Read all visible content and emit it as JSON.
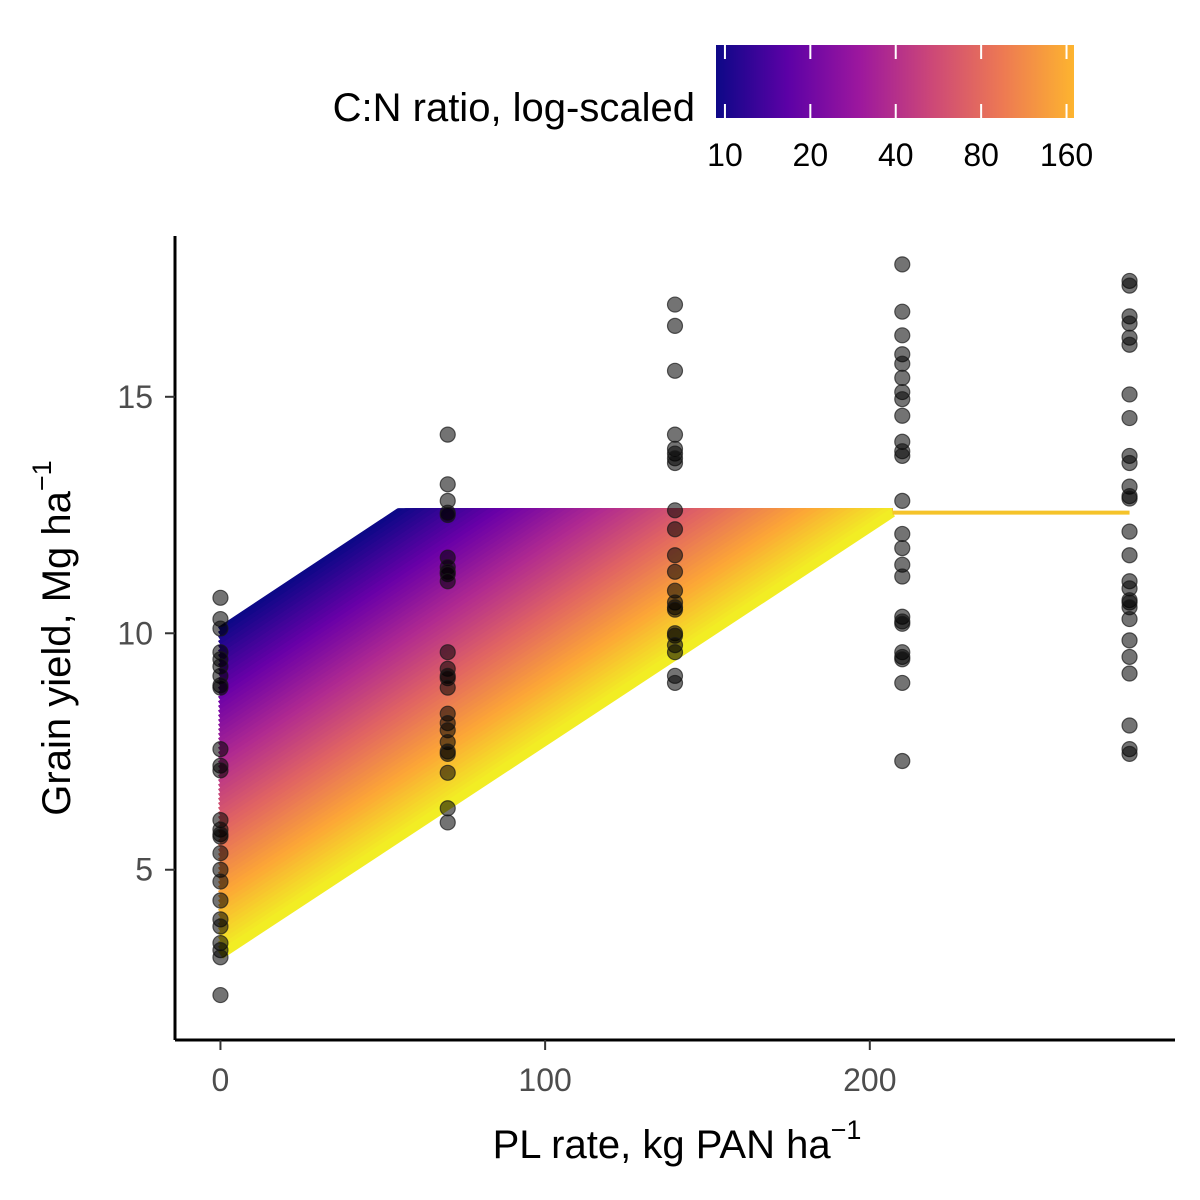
{
  "chart_data": {
    "type": "scatter",
    "title": "",
    "xlabel": "PL rate, kg PAN ha",
    "xlabel_sup": "−1",
    "ylabel": "Grain yield, Mg ha",
    "ylabel_sup": "−1",
    "xlim": [
      -14,
      294
    ],
    "ylim": [
      1.4,
      18.4
    ],
    "x_ticks": [
      0,
      100,
      200
    ],
    "y_ticks": [
      5,
      10,
      15
    ],
    "grid": false,
    "legend": {
      "title": "C:N ratio, log-scaled",
      "position": "top",
      "scale": "log",
      "range": [
        9.3,
        170
      ],
      "ticks": [
        10,
        20,
        40,
        80,
        160
      ],
      "colors": [
        "#0d0887",
        "#6a00a8",
        "#b12a90",
        "#e16462",
        "#fca636",
        "#f0f921"
      ]
    },
    "model_band": {
      "description_free": true,
      "plateau_yield": 12.55,
      "intercept_low_cn": 10.05,
      "plateau_x_low_cn": 55,
      "intercept_high_cn": 3.2,
      "plateau_x_high_cn": 207,
      "x_end": 280,
      "plateau_color": "#f5c32a"
    },
    "series": [
      {
        "x": 0,
        "values": [
          10.75,
          10.3,
          10.1,
          9.6,
          9.45,
          9.3,
          9.1,
          8.9,
          8.85,
          7.55,
          7.2,
          7.1,
          6.05,
          5.85,
          5.75,
          5.7,
          5.35,
          5.0,
          4.75,
          4.35,
          3.95,
          3.8,
          3.45,
          3.3,
          3.15,
          2.35
        ]
      },
      {
        "x": 70,
        "values": [
          14.2,
          13.15,
          12.8,
          12.55,
          12.5,
          11.6,
          11.4,
          11.3,
          11.25,
          11.1,
          9.6,
          9.25,
          9.1,
          9.05,
          8.85,
          8.3,
          8.1,
          7.95,
          7.7,
          7.5,
          7.45,
          7.05,
          6.3,
          6.0
        ]
      },
      {
        "x": 140,
        "values": [
          16.95,
          16.5,
          15.55,
          14.2,
          13.9,
          13.8,
          13.7,
          13.6,
          12.6,
          12.2,
          11.65,
          11.3,
          10.9,
          10.65,
          10.55,
          10.5,
          10.0,
          9.95,
          9.75,
          9.6,
          9.1,
          8.95
        ]
      },
      {
        "x": 210,
        "values": [
          17.8,
          16.8,
          16.3,
          15.9,
          15.7,
          15.4,
          15.1,
          14.95,
          14.6,
          14.05,
          13.85,
          13.75,
          12.8,
          12.1,
          11.8,
          11.45,
          11.2,
          10.35,
          10.25,
          10.2,
          9.6,
          9.5,
          9.45,
          8.95,
          7.3
        ]
      },
      {
        "x": 280,
        "values": [
          17.45,
          17.35,
          16.7,
          16.55,
          16.25,
          16.1,
          15.05,
          14.55,
          13.75,
          13.6,
          13.1,
          12.9,
          12.85,
          12.15,
          11.65,
          11.1,
          10.95,
          10.7,
          10.65,
          10.55,
          10.3,
          9.85,
          9.5,
          9.15,
          8.05,
          7.55,
          7.45
        ]
      }
    ]
  }
}
